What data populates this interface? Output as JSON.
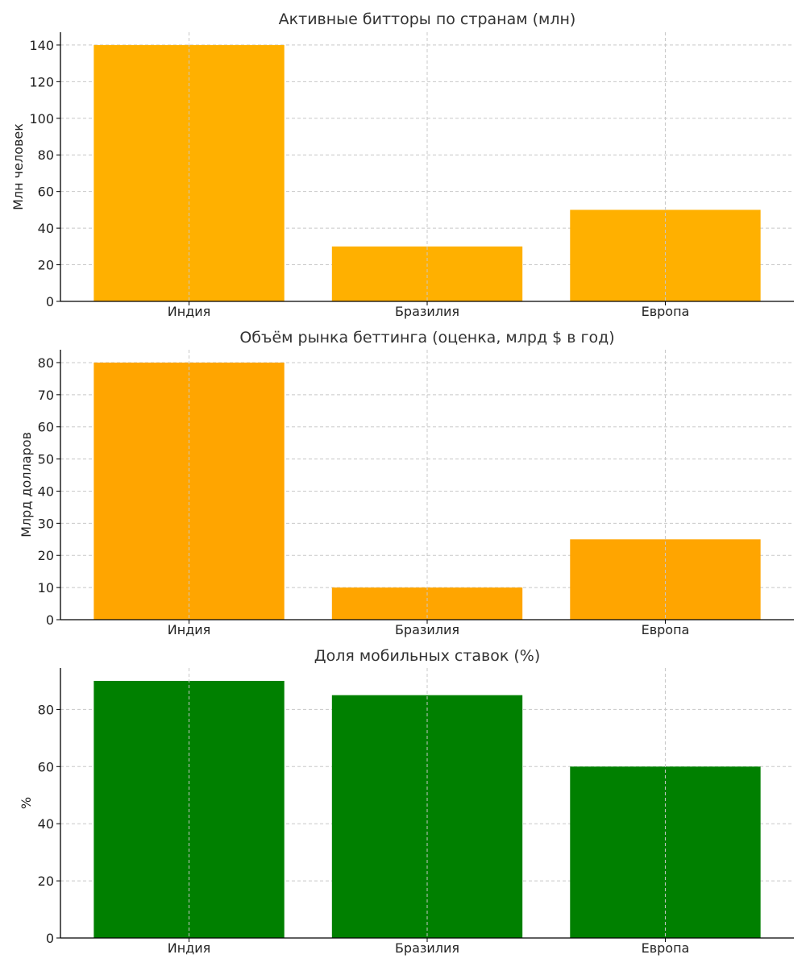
{
  "chart_data": [
    {
      "type": "bar",
      "title": "Активные битторы по странам (млн)",
      "xlabel": "",
      "ylabel": "Млн человек",
      "categories": [
        "Индия",
        "Бразилия",
        "Европа"
      ],
      "values": [
        140,
        30,
        50
      ],
      "ylim": [
        0,
        147
      ],
      "yticks": [
        0,
        20,
        40,
        60,
        80,
        100,
        120,
        140
      ],
      "color": "#FFB000",
      "grid": true
    },
    {
      "type": "bar",
      "title": "Объём рынка беттинга (оценка, млрд $ в год)",
      "xlabel": "",
      "ylabel": "Млрд долларов",
      "categories": [
        "Индия",
        "Бразилия",
        "Европа"
      ],
      "values": [
        80,
        10,
        25
      ],
      "ylim": [
        0,
        84
      ],
      "yticks": [
        0,
        10,
        20,
        30,
        40,
        50,
        60,
        70,
        80
      ],
      "color": "#FFA500",
      "grid": true
    },
    {
      "type": "bar",
      "title": "Доля мобильных ставок (%)",
      "xlabel": "",
      "ylabel": "%",
      "categories": [
        "Индия",
        "Бразилия",
        "Европа"
      ],
      "values": [
        90,
        85,
        60
      ],
      "ylim": [
        0,
        94.5
      ],
      "yticks": [
        0,
        20,
        40,
        60,
        80
      ],
      "color": "#008000",
      "grid": true
    }
  ]
}
